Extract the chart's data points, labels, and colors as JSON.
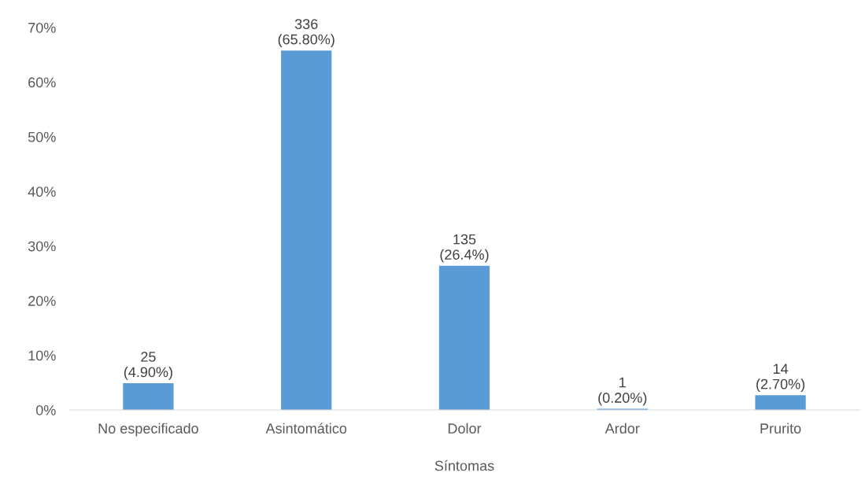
{
  "chart_data": {
    "type": "bar",
    "xlabel": "Síntomas",
    "categories": [
      "No especificado",
      "Asintomático",
      "Dolor",
      "Ardor",
      "Prurito"
    ],
    "values": [
      4.9,
      65.8,
      26.4,
      0.2,
      2.7
    ],
    "value_labels": [
      "25\n(4.90%)",
      "336\n(65.80%)",
      "135\n(26.4%)",
      "1\n(0.20%)",
      "14\n(2.70%)"
    ],
    "color": "#5b9bd5",
    "ylim": [
      0,
      70
    ],
    "yticks": [
      {
        "value": 0,
        "label": "0%"
      },
      {
        "value": 10,
        "label": "10%"
      },
      {
        "value": 20,
        "label": "20%"
      },
      {
        "value": 30,
        "label": "30%"
      },
      {
        "value": 40,
        "label": "40%"
      },
      {
        "value": 50,
        "label": "50%"
      },
      {
        "value": 60,
        "label": "60%"
      },
      {
        "value": 70,
        "label": "70%"
      }
    ],
    "grid": false,
    "legend": false
  }
}
